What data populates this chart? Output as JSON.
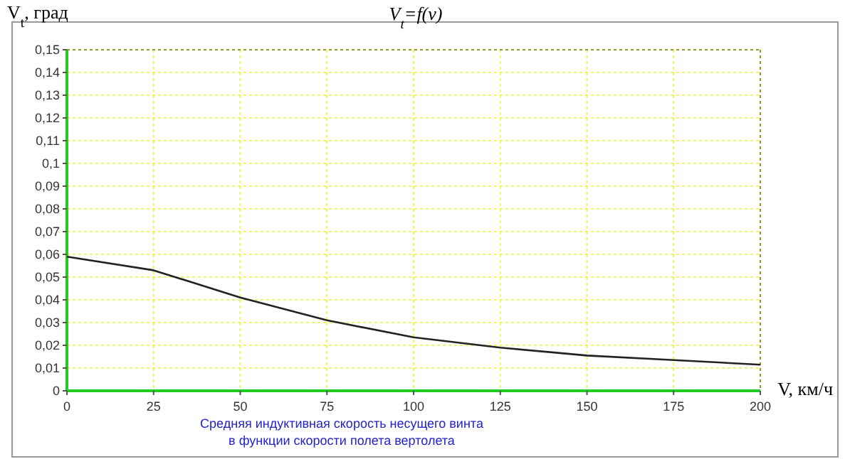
{
  "chart_data": {
    "type": "line",
    "title": "V$_{t}$=f(v)",
    "ylabel": "V$_{t}$, град",
    "xlabel": "V, км/ч",
    "annotations": [
      "Средняя индуктивная скорость несущего винта\nв функции скорости полета вертолета"
    ],
    "x": [
      0,
      25,
      50,
      75,
      100,
      125,
      150,
      175,
      200
    ],
    "series": [
      {
        "color": "#222222",
        "values": [
          0.059,
          0.053,
          0.041,
          0.031,
          0.0235,
          0.019,
          0.0155,
          0.0135,
          0.0115
        ]
      }
    ],
    "xlim": [
      0,
      200
    ],
    "xticks": [
      0,
      25,
      50,
      75,
      100,
      125,
      150,
      175,
      200
    ],
    "ylim": [
      0,
      0.15
    ],
    "yticks": [
      0,
      {
        "value": 0.01,
        "label": "0,01"
      },
      {
        "value": 0.02,
        "label": "0,02"
      },
      {
        "value": 0.03,
        "label": "0,03"
      },
      {
        "value": 0.04,
        "label": "0,04"
      },
      {
        "value": 0.05,
        "label": "0,05"
      },
      {
        "value": 0.06,
        "label": "0,06"
      },
      {
        "value": 0.07,
        "label": "0,07"
      },
      {
        "value": 0.08,
        "label": "0,08"
      },
      {
        "value": 0.09,
        "label": "0,09"
      },
      {
        "value": 0.1,
        "label": "0,1"
      },
      {
        "value": 0.11,
        "label": "0,11"
      },
      {
        "value": 0.12,
        "label": "0,12"
      },
      {
        "value": 0.13,
        "label": "0,13"
      },
      {
        "value": 0.14,
        "label": "0,14"
      },
      {
        "value": 0.15,
        "label": "0,15"
      }
    ],
    "grid": true,
    "marker": "none",
    "line_style": "solid"
  }
}
